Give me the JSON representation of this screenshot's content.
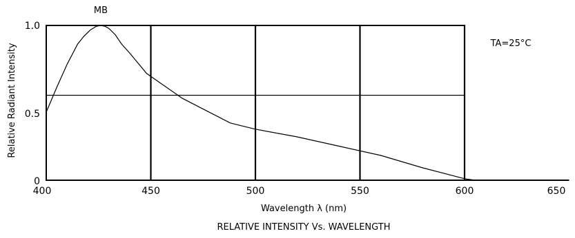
{
  "chart_data": {
    "type": "line",
    "title": "RELATIVE INTENSITY Vs. WAVELENGTH",
    "series_label": "MB",
    "annotation": "TA=25°C",
    "xlabel": "Wavelength λ (nm)",
    "ylabel": "Relative Radiant Intensity",
    "xlim": [
      400,
      650
    ],
    "ylim": [
      0,
      1.0
    ],
    "x_ticks": [
      400,
      450,
      500,
      550,
      600,
      650
    ],
    "x_tick_labels": [
      "400",
      "450",
      "500",
      "550",
      "600",
      "650"
    ],
    "y_ticks": [
      0,
      0.5,
      1.0
    ],
    "y_tick_labels": [
      "0",
      "0.5",
      "1.0"
    ],
    "grid": {
      "vertical": [
        450,
        500,
        550,
        600
      ],
      "horizontal": [
        0.5
      ]
    },
    "series": [
      {
        "x": [
          400,
          405,
          410,
          415,
          418,
          421,
          424,
          426,
          428,
          430,
          433,
          436,
          440,
          448,
          465,
          488,
          500,
          520,
          540,
          560,
          580,
          600,
          605
        ],
        "y": [
          0.44,
          0.6,
          0.75,
          0.88,
          0.93,
          0.97,
          0.995,
          1.0,
          0.995,
          0.98,
          0.94,
          0.88,
          0.82,
          0.69,
          0.53,
          0.37,
          0.33,
          0.28,
          0.22,
          0.16,
          0.08,
          0.01,
          0.0
        ]
      }
    ]
  }
}
